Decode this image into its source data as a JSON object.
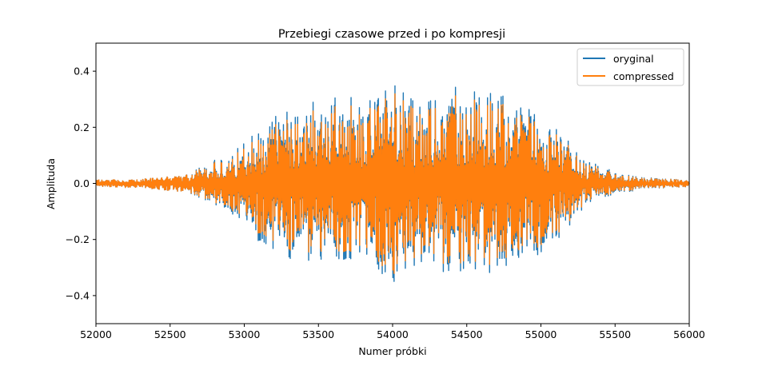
{
  "chart_data": {
    "type": "line",
    "title": "Przebiegi czasowe przed i po kompresji",
    "xlabel": "Numer próbki",
    "ylabel": "Amplituda",
    "xlim": [
      52000,
      56000
    ],
    "ylim": [
      -0.5,
      0.5
    ],
    "x_ticks": [
      52000,
      52500,
      53000,
      53500,
      54000,
      54500,
      55000,
      55500,
      56000
    ],
    "x_tick_labels": [
      "52000",
      "52500",
      "53000",
      "53500",
      "54000",
      "54500",
      "55000",
      "55500",
      "56000"
    ],
    "y_ticks": [
      0.4,
      0.2,
      0.0,
      -0.2,
      -0.4
    ],
    "y_tick_labels": [
      "0.4",
      "0.2",
      "0.0",
      "−0.2",
      "−0.4"
    ],
    "grid": false,
    "legend_position": "top-right",
    "series": [
      {
        "name": "oryginal",
        "color": "#1f77b4",
        "envelope_x": [
          52000,
          52300,
          52600,
          52700,
          52900,
          53000,
          53150,
          53300,
          53500,
          53700,
          53900,
          54000,
          54200,
          54400,
          54600,
          54800,
          54950,
          55100,
          55300,
          55500,
          55700,
          56000
        ],
        "envelope_y": [
          0.012,
          0.015,
          0.03,
          0.06,
          0.1,
          0.15,
          0.23,
          0.27,
          0.28,
          0.3,
          0.33,
          0.37,
          0.3,
          0.33,
          0.34,
          0.3,
          0.28,
          0.2,
          0.08,
          0.04,
          0.02,
          0.012
        ]
      },
      {
        "name": "compressed",
        "color": "#ff7f0e",
        "envelope_x": [
          52000,
          52300,
          52600,
          52700,
          52900,
          53000,
          53150,
          53300,
          53500,
          53700,
          53900,
          54000,
          54200,
          54400,
          54600,
          54800,
          54950,
          55100,
          55300,
          55500,
          55700,
          56000
        ],
        "envelope_y": [
          0.012,
          0.015,
          0.03,
          0.055,
          0.09,
          0.13,
          0.2,
          0.24,
          0.25,
          0.27,
          0.3,
          0.34,
          0.27,
          0.3,
          0.31,
          0.27,
          0.25,
          0.18,
          0.07,
          0.035,
          0.018,
          0.012
        ]
      }
    ]
  }
}
